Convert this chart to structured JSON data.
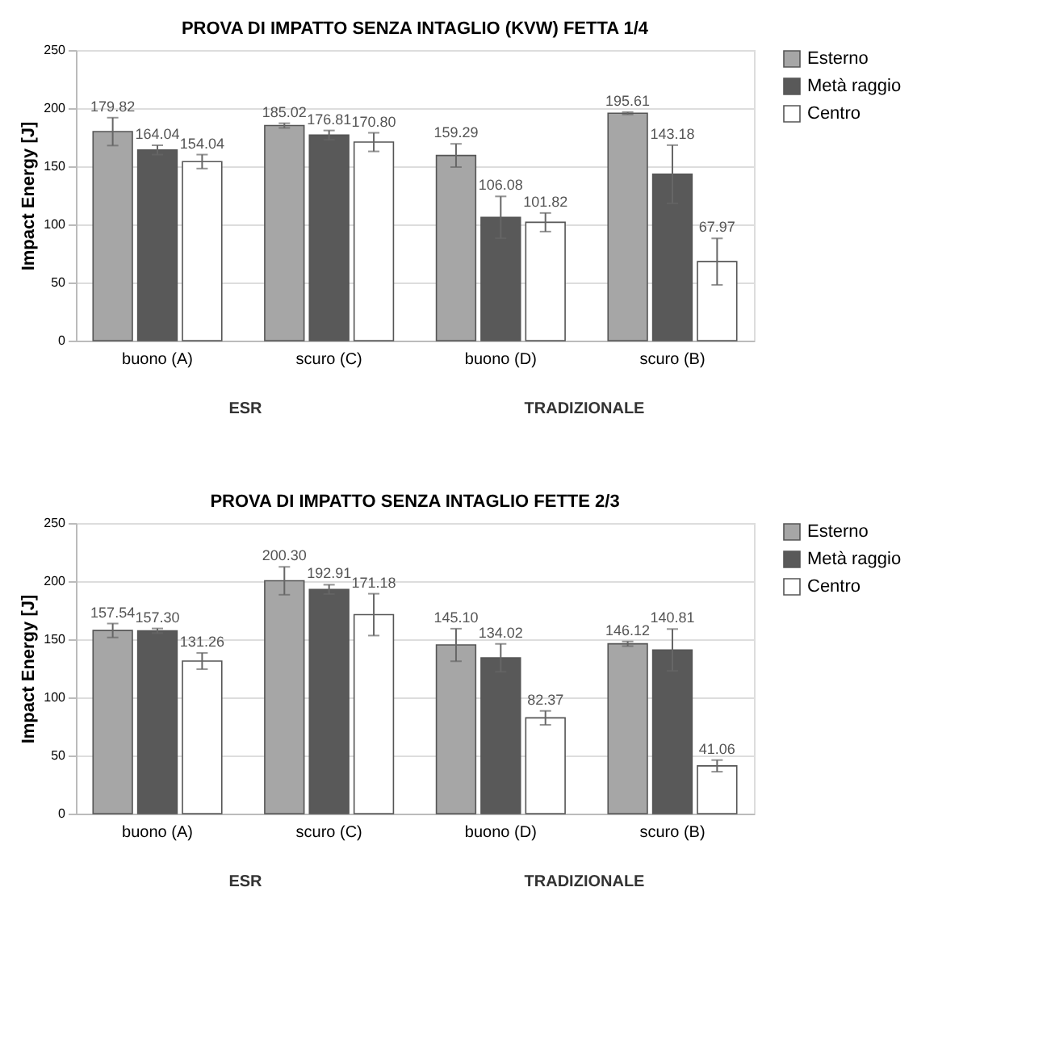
{
  "chart_data": [
    {
      "type": "bar",
      "title": "PROVA DI IMPATTO SENZA INTAGLIO (KVW) FETTA 1/4",
      "ylabel": "Impact Energy [J]",
      "categories": [
        "buono (A)",
        "scuro (C)",
        "buono (D)",
        "scuro (B)"
      ],
      "series": [
        {
          "name": "Esterno",
          "color": "#a6a6a6",
          "values": [
            179.82,
            185.02,
            159.29,
            195.61
          ],
          "errors": [
            12,
            2,
            10,
            1
          ],
          "value_labels": [
            "179.82",
            "185.02",
            "159.29",
            "195.61"
          ]
        },
        {
          "name": "Metà raggio",
          "color": "#595959",
          "values": [
            164.04,
            176.81,
            106.08,
            143.18
          ],
          "errors": [
            4,
            4,
            18,
            25
          ],
          "value_labels": [
            "164.04",
            "176.81",
            "106.08",
            "143.18"
          ]
        },
        {
          "name": "Centro",
          "color": "#ffffff",
          "values": [
            154.04,
            170.8,
            101.82,
            67.97
          ],
          "errors": [
            6,
            8,
            8,
            20
          ],
          "value_labels": [
            "154.04",
            "170.80",
            "101.82",
            "67.97"
          ]
        }
      ],
      "ylim": [
        0,
        250
      ],
      "yticks": [
        0,
        50,
        100,
        150,
        200,
        250
      ],
      "grid": "y",
      "legend": "right",
      "annotations": [
        "ESR",
        "TRADIZIONALE"
      ]
    },
    {
      "type": "bar",
      "title": "PROVA DI IMPATTO SENZA INTAGLIO FETTE 2/3",
      "ylabel": "Impact Energy [J]",
      "categories": [
        "buono (A)",
        "scuro (C)",
        "buono (D)",
        "scuro (B)"
      ],
      "series": [
        {
          "name": "Esterno",
          "color": "#a6a6a6",
          "values": [
            157.54,
            200.3,
            145.1,
            146.12
          ],
          "errors": [
            6,
            12,
            14,
            2
          ],
          "value_labels": [
            "157.54",
            "200.30",
            "145.10",
            "146.12"
          ]
        },
        {
          "name": "Metà raggio",
          "color": "#595959",
          "values": [
            157.3,
            192.91,
            134.02,
            140.81
          ],
          "errors": [
            2,
            4,
            12,
            18
          ],
          "value_labels": [
            "157.30",
            "192.91",
            "134.02",
            "140.81"
          ]
        },
        {
          "name": "Centro",
          "color": "#ffffff",
          "values": [
            131.26,
            171.18,
            82.37,
            41.06
          ],
          "errors": [
            7,
            18,
            6,
            5
          ],
          "value_labels": [
            "131.26",
            "171.18",
            "82.37",
            "41.06"
          ]
        }
      ],
      "ylim": [
        0,
        250
      ],
      "yticks": [
        0,
        50,
        100,
        150,
        200,
        250
      ],
      "grid": "y",
      "legend": "right",
      "annotations": [
        "ESR",
        "TRADIZIONALE"
      ]
    }
  ]
}
